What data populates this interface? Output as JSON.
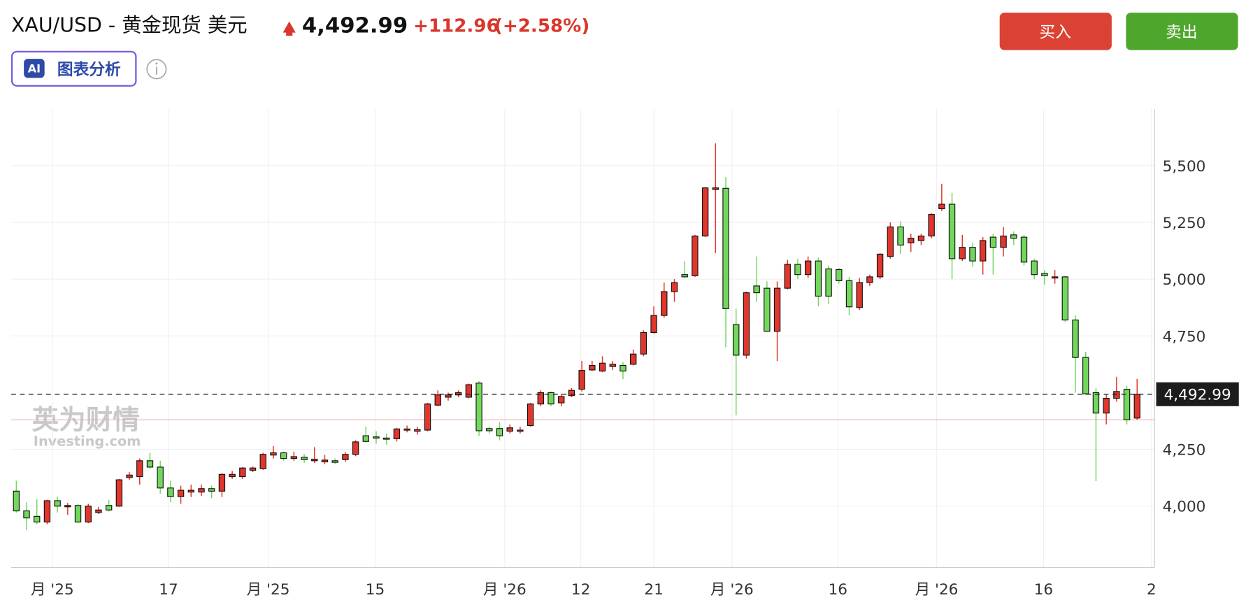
{
  "header": {
    "symbol": "XAU/USD - 黄金现货 美元",
    "price": "4,492.99",
    "change": "+112.96",
    "change_pct": "(+2.58%)"
  },
  "buttons": [
    "买入",
    "卖出"
  ],
  "ai_badge": "AI",
  "ai_button": "图表分析",
  "watermark": [
    "英为财情",
    "Investing.com"
  ],
  "chart_data": {
    "type": "candlestick",
    "up_color": "#e0362c",
    "down_color": "#72d85c",
    "prev_close": 4380.03,
    "open": [
      4066,
      3979,
      3955,
      3930,
      4024,
      3997,
      4003,
      3930,
      3972,
      4003,
      4000,
      4126,
      4130,
      4200,
      4172,
      4080,
      4042,
      4062,
      4062,
      4077,
      4066,
      4130,
      4130,
      4158,
      4165,
      4225,
      4235,
      4210,
      4215,
      4200,
      4195,
      4200,
      4205,
      4228,
      4310,
      4305,
      4300,
      4297,
      4335,
      4330,
      4335,
      4445,
      4480,
      4490,
      4480,
      4542,
      4342,
      4342,
      4330,
      4330,
      4355,
      4450,
      4500,
      4455,
      4487,
      4515,
      4600,
      4595,
      4615,
      4620,
      4625,
      4670,
      4765,
      4840,
      4945,
      5020,
      5015,
      5190,
      5395,
      5400,
      4800,
      4665,
      4970,
      4960,
      4770,
      4960,
      5065,
      5020,
      5080,
      5045,
      5042,
      4993,
      4875,
      4985,
      5010,
      5100,
      5230,
      5160,
      5170,
      5190,
      5310,
      5330,
      5090,
      5140,
      5080,
      5185,
      5140,
      5195,
      5185,
      5080,
      5025,
      5005,
      5010,
      4820,
      4655,
      4500,
      4410,
      4475,
      4515,
      4388
    ],
    "high": [
      4112,
      4017,
      4031,
      4028,
      4042,
      4014,
      4010,
      4010,
      3997,
      4028,
      4120,
      4150,
      4210,
      4235,
      4200,
      4112,
      4090,
      4095,
      4095,
      4090,
      4145,
      4155,
      4172,
      4175,
      4235,
      4265,
      4240,
      4240,
      4230,
      4260,
      4225,
      4210,
      4238,
      4290,
      4350,
      4330,
      4320,
      4345,
      4355,
      4350,
      4455,
      4510,
      4500,
      4510,
      4540,
      4550,
      4350,
      4370,
      4360,
      4350,
      4455,
      4510,
      4505,
      4495,
      4520,
      4640,
      4640,
      4660,
      4640,
      4635,
      4690,
      4775,
      4880,
      4985,
      5000,
      5080,
      5195,
      5405,
      5598,
      5450,
      4870,
      4945,
      5100,
      4990,
      4990,
      5085,
      5090,
      5100,
      5095,
      5060,
      5050,
      5010,
      5005,
      5020,
      5115,
      5250,
      5255,
      5200,
      5200,
      5290,
      5420,
      5380,
      5195,
      5160,
      5185,
      5200,
      5230,
      5210,
      5195,
      5090,
      5040,
      5040,
      5015,
      4840,
      4680,
      4520,
      4490,
      4570,
      4530,
      4560
    ],
    "low": [
      3972,
      3894,
      3920,
      3920,
      3972,
      3962,
      3925,
      3925,
      3965,
      3976,
      3997,
      4116,
      4095,
      4165,
      4055,
      4017,
      4010,
      4040,
      4045,
      4035,
      4040,
      4120,
      4120,
      4150,
      4160,
      4210,
      4200,
      4200,
      4190,
      4190,
      4185,
      4185,
      4195,
      4220,
      4280,
      4275,
      4270,
      4285,
      4325,
      4315,
      4330,
      4440,
      4465,
      4480,
      4475,
      4310,
      4320,
      4290,
      4320,
      4320,
      4350,
      4440,
      4440,
      4440,
      4480,
      4505,
      4595,
      4590,
      4600,
      4560,
      4620,
      4660,
      4760,
      4830,
      4900,
      5005,
      5010,
      5185,
      5115,
      4700,
      4400,
      4650,
      4900,
      4770,
      4640,
      4955,
      5000,
      5005,
      4880,
      4890,
      4980,
      4840,
      4865,
      4970,
      5000,
      5090,
      5110,
      5120,
      5150,
      5180,
      5300,
      5000,
      5080,
      5055,
      5020,
      5020,
      5100,
      5150,
      5060,
      5000,
      4975,
      4980,
      4810,
      4500,
      4490,
      4110,
      4360,
      4460,
      4360,
      4380
    ],
    "close": [
      3979,
      3948,
      3930,
      4024,
      4000,
      4003,
      3930,
      4000,
      3983,
      3983,
      4116,
      4137,
      4200,
      4172,
      4080,
      4042,
      4070,
      4070,
      4077,
      4066,
      4140,
      4140,
      4168,
      4168,
      4228,
      4235,
      4210,
      4218,
      4205,
      4207,
      4203,
      4193,
      4228,
      4283,
      4285,
      4300,
      4295,
      4340,
      4340,
      4337,
      4450,
      4490,
      4490,
      4500,
      4535,
      4332,
      4332,
      4310,
      4345,
      4335,
      4450,
      4500,
      4450,
      4483,
      4510,
      4598,
      4620,
      4630,
      4625,
      4595,
      4670,
      4765,
      4840,
      4945,
      4985,
      5010,
      5190,
      5402,
      5402,
      4870,
      4665,
      4940,
      4940,
      4770,
      4960,
      5065,
      5020,
      5080,
      4925,
      4925,
      4993,
      4878,
      4985,
      5010,
      5110,
      5230,
      5150,
      5180,
      5190,
      5285,
      5330,
      5090,
      5140,
      5080,
      5170,
      5140,
      5190,
      5180,
      5075,
      5020,
      5015,
      5010,
      4820,
      4655,
      4495,
      4410,
      4475,
      4505,
      4380,
      4492.99
    ],
    "xlim": [
      -0.5,
      110.7
    ],
    "xticks": [
      {
        "value": 3.5,
        "label": "月 '25"
      },
      {
        "value": 14.8,
        "label": "17"
      },
      {
        "value": 24.5,
        "label": "月 '25"
      },
      {
        "value": 34.9,
        "label": "15"
      },
      {
        "value": 47.5,
        "label": "月 '26"
      },
      {
        "value": 54.9,
        "label": "12"
      },
      {
        "value": 62,
        "label": "21"
      },
      {
        "value": 69.6,
        "label": "月 '26"
      },
      {
        "value": 79.9,
        "label": "16"
      },
      {
        "value": 89.5,
        "label": "月 '26"
      },
      {
        "value": 99.9,
        "label": "16"
      },
      {
        "value": 110.4,
        "label": "2"
      }
    ],
    "ylim": [
      3730,
      5750
    ],
    "yticks": [
      {
        "value": 4000,
        "label": "4,000"
      },
      {
        "value": 4250,
        "label": "4,250"
      },
      {
        "value": 4750,
        "label": "4,750"
      },
      {
        "value": 5000,
        "label": "5,000"
      },
      {
        "value": 5250,
        "label": "5,250"
      },
      {
        "value": 5500,
        "label": "5,500"
      }
    ],
    "grid": true
  }
}
